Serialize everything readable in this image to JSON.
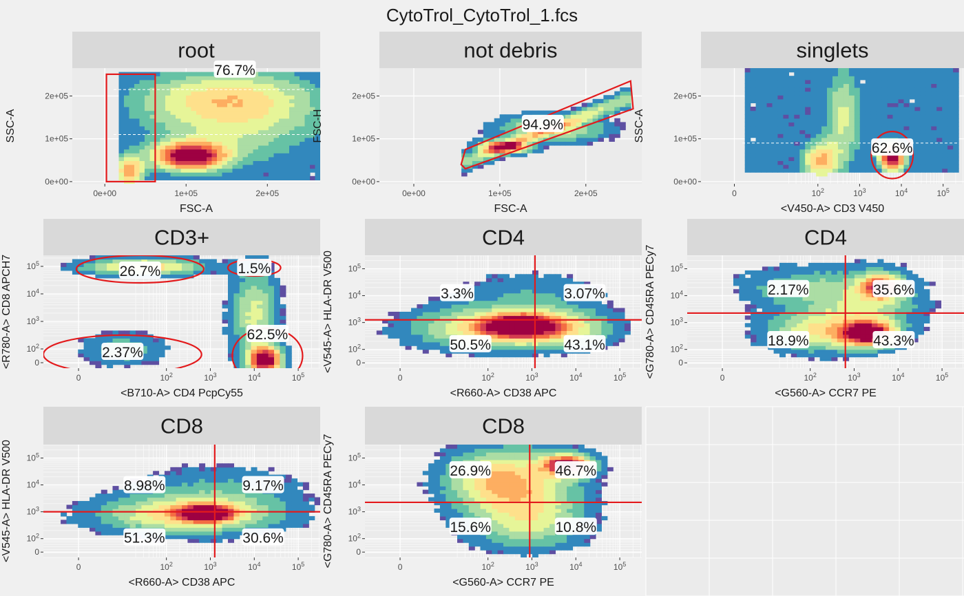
{
  "page_title": "CytoTrol_CytoTrol_1.fcs",
  "colors": {
    "page_background": "#f0f0f0",
    "panel_background": "#ebebeb",
    "strip_background": "#d9d9d9",
    "gridline": "#ffffff",
    "gate": "#e31a1c",
    "density_palette": [
      "#5e4fa2",
      "#3288bd",
      "#66c2a5",
      "#abdda4",
      "#e6f598",
      "#fee08b",
      "#fdae61",
      "#f46d43",
      "#d53e4f",
      "#9e0142"
    ]
  },
  "chart_data": [
    {
      "type": "heatmap",
      "strip": "root",
      "xlabel": "FSC-A",
      "ylabel": "SSC-A",
      "xscale": "linear",
      "yscale": "linear",
      "xlim": [
        -40000,
        265000
      ],
      "ylim": [
        -5000,
        265000
      ],
      "xticks": [
        {
          "v": 0,
          "t": "0e+00"
        },
        {
          "v": 100000,
          "t": "1e+05"
        },
        {
          "v": 200000,
          "t": "2e+05"
        }
      ],
      "yticks": [
        {
          "v": 0,
          "t": "0e+00"
        },
        {
          "v": 100000,
          "t": "1e+05"
        },
        {
          "v": 200000,
          "t": "2e+05"
        }
      ],
      "blobs": [
        {
          "x": 105000,
          "y": 60000,
          "sx": 30000,
          "sy": 22000,
          "w": 1.0
        },
        {
          "x": 160000,
          "y": 150000,
          "sx": 75000,
          "sy": 70000,
          "w": 0.35
        },
        {
          "x": 30000,
          "y": 25000,
          "sx": 12000,
          "sy": 25000,
          "w": 0.6
        },
        {
          "x": 140000,
          "y": 200000,
          "sx": 80000,
          "sy": 40000,
          "w": 0.25
        }
      ],
      "region": {
        "x": [
          15000,
          265000
        ],
        "y": [
          0,
          260000
        ]
      },
      "dashed": [
        110000,
        215000
      ],
      "gates": [
        {
          "kind": "rect",
          "x1": 2000,
          "x2": 62000,
          "y1": 0,
          "y2": 270000
        }
      ],
      "labels": [
        {
          "text": "76.7%",
          "x": 160000,
          "y": 262000
        }
      ]
    },
    {
      "type": "heatmap",
      "strip": "not debris",
      "xlabel": "FSC-A",
      "ylabel": "FSC-H",
      "xscale": "linear",
      "yscale": "linear",
      "xlim": [
        -40000,
        265000
      ],
      "ylim": [
        -5000,
        265000
      ],
      "xticks": [
        {
          "v": 0,
          "t": "0e+00"
        },
        {
          "v": 100000,
          "t": "1e+05"
        },
        {
          "v": 200000,
          "t": "2e+05"
        }
      ],
      "yticks": [
        {
          "v": 0,
          "t": "0e+00"
        },
        {
          "v": 100000,
          "t": "1e+05"
        },
        {
          "v": 200000,
          "t": "2e+05"
        }
      ],
      "band": {
        "x1": 55000,
        "x2": 255000,
        "slope": 0.78,
        "intercept": 0,
        "width": 14000
      },
      "blobs": [
        {
          "x": 105000,
          "y": 82000,
          "sx": 18000,
          "sy": 10000,
          "w": 1.0
        },
        {
          "x": 160000,
          "y": 125000,
          "sx": 40000,
          "sy": 20000,
          "w": 0.4
        }
      ],
      "gates": [
        {
          "kind": "poly",
          "points": [
            [
              55000,
              40000
            ],
            [
              60000,
              75000
            ],
            [
              252000,
              235000
            ],
            [
              255000,
              170000
            ],
            [
              60000,
              30000
            ]
          ]
        }
      ],
      "labels": [
        {
          "text": "94.9%",
          "x": 150000,
          "y": 135000
        }
      ]
    },
    {
      "type": "heatmap",
      "strip": "singlets",
      "xlabel": "<V450-A> CD3 V450",
      "ylabel": "SSC-A",
      "xscale": "logicle",
      "yscale": "linear",
      "xlim": [
        -0.8,
        5.5
      ],
      "ylim": [
        -5000,
        265000
      ],
      "xticks": [
        {
          "v": 0,
          "t": "0"
        },
        {
          "v": 2,
          "t": "10^2"
        },
        {
          "v": 3,
          "t": "10^3"
        },
        {
          "v": 4,
          "t": "10^4"
        },
        {
          "v": 5,
          "t": "10^5"
        }
      ],
      "yticks": [
        {
          "v": 0,
          "t": "0e+00"
        },
        {
          "v": 100000,
          "t": "1e+05"
        },
        {
          "v": 200000,
          "t": "2e+05"
        }
      ],
      "blobs": [
        {
          "x": 3.78,
          "y": 58000,
          "sx": 0.22,
          "sy": 22000,
          "w": 1.0
        },
        {
          "x": 2.05,
          "y": 50000,
          "sx": 0.3,
          "sy": 30000,
          "w": 0.55
        },
        {
          "x": 2.6,
          "y": 150000,
          "sx": 0.3,
          "sy": 80000,
          "w": 0.35
        }
      ],
      "region": {
        "x": [
          0.3,
          5.4
        ],
        "y": [
          20000,
          265000
        ]
      },
      "dashed": [
        90000
      ],
      "gates": [
        {
          "kind": "ellipse",
          "cx": 3.78,
          "cy": 62000,
          "rx": 0.5,
          "ry": 55000
        }
      ],
      "labels": [
        {
          "text": "62.6%",
          "x": 3.78,
          "y": 80000
        }
      ]
    },
    {
      "type": "heatmap",
      "strip": "CD3+",
      "xlabel": "<B710-A> CD4 PcpCy55",
      "ylabel": "<R780-A> CD8 APCH7",
      "xscale": "logicle",
      "yscale": "logicle",
      "xlim": [
        -0.8,
        5.5
      ],
      "ylim": [
        1.3,
        5.4
      ],
      "xticks": [
        {
          "v": 0,
          "t": "0"
        },
        {
          "v": 2,
          "t": "10^2"
        },
        {
          "v": 3,
          "t": "10^3"
        },
        {
          "v": 4,
          "t": "10^4"
        },
        {
          "v": 5,
          "t": "10^5"
        }
      ],
      "yticks": [
        {
          "v": 1.5,
          "t": "0"
        },
        {
          "v": 2,
          "t": "10^2"
        },
        {
          "v": 3,
          "t": "10^3"
        },
        {
          "v": 4,
          "t": "10^4"
        },
        {
          "v": 5,
          "t": "10^5"
        }
      ],
      "blobs": [
        {
          "x": 4.25,
          "y": 1.6,
          "sx": 0.25,
          "sy": 0.35,
          "w": 1.0
        },
        {
          "x": 1.5,
          "y": 5.0,
          "sx": 0.9,
          "sy": 0.2,
          "w": 0.5
        },
        {
          "x": 4.0,
          "y": 3.3,
          "sx": 0.35,
          "sy": 1.1,
          "w": 0.35
        },
        {
          "x": 1.0,
          "y": 2.0,
          "sx": 0.6,
          "sy": 0.4,
          "w": 0.2
        }
      ],
      "gates": [
        {
          "kind": "ellipse",
          "cx": 1.4,
          "cy": 4.9,
          "rx": 1.45,
          "ry": 0.5
        },
        {
          "kind": "ellipse",
          "cx": 4.0,
          "cy": 4.95,
          "rx": 0.6,
          "ry": 0.3
        },
        {
          "kind": "ellipse",
          "cx": 1.0,
          "cy": 1.8,
          "rx": 1.8,
          "ry": 0.7
        },
        {
          "kind": "ellipse",
          "cx": 4.3,
          "cy": 1.75,
          "rx": 0.8,
          "ry": 1.0
        }
      ],
      "labels": [
        {
          "text": "26.7%",
          "x": 1.4,
          "y": 4.85
        },
        {
          "text": "1.5%",
          "x": 4.0,
          "y": 4.95
        },
        {
          "text": "2.37%",
          "x": 1.0,
          "y": 1.9
        },
        {
          "text": "62.5%",
          "x": 4.3,
          "y": 2.55
        }
      ]
    },
    {
      "type": "heatmap",
      "strip": "CD4",
      "xlabel": "<R660-A> CD38 APC",
      "ylabel": "<V545-A> HLA-DR V500",
      "xscale": "logicle",
      "yscale": "logicle",
      "xlim": [
        -0.8,
        5.5
      ],
      "ylim": [
        1.3,
        5.5
      ],
      "xticks": [
        {
          "v": 0,
          "t": "0"
        },
        {
          "v": 2,
          "t": "10^2"
        },
        {
          "v": 3,
          "t": "10^3"
        },
        {
          "v": 4,
          "t": "10^4"
        },
        {
          "v": 5,
          "t": "10^5"
        }
      ],
      "yticks": [
        {
          "v": 1.5,
          "t": "0"
        },
        {
          "v": 2,
          "t": "10^2"
        },
        {
          "v": 3,
          "t": "10^3"
        },
        {
          "v": 4,
          "t": "10^4"
        },
        {
          "v": 5,
          "t": "10^5"
        }
      ],
      "blobs": [
        {
          "x": 2.7,
          "y": 2.9,
          "sx": 0.5,
          "sy": 0.25,
          "w": 1.0
        },
        {
          "x": 2.2,
          "y": 2.8,
          "sx": 1.2,
          "sy": 0.5,
          "w": 0.5
        },
        {
          "x": 3.5,
          "y": 2.8,
          "sx": 0.8,
          "sy": 0.4,
          "w": 0.35
        },
        {
          "x": 3.0,
          "y": 4.0,
          "sx": 1.2,
          "sy": 0.6,
          "w": 0.12
        }
      ],
      "gates": [
        {
          "kind": "quad",
          "x": 3.07,
          "y": 3.1
        }
      ],
      "labels": [
        {
          "text": "3.3%",
          "x": 1.3,
          "y": 4.1
        },
        {
          "text": "3.07%",
          "x": 4.2,
          "y": 4.1
        },
        {
          "text": "50.5%",
          "x": 1.6,
          "y": 2.2
        },
        {
          "text": "43.1%",
          "x": 4.2,
          "y": 2.2
        }
      ]
    },
    {
      "type": "heatmap",
      "strip": "CD4",
      "xlabel": "<G560-A> CCR7 PE",
      "ylabel": "<G780-A> CD45RA PECy7",
      "xscale": "logicle",
      "yscale": "logicle",
      "xlim": [
        -0.8,
        5.5
      ],
      "ylim": [
        1.3,
        5.5
      ],
      "xticks": [
        {
          "v": 0,
          "t": "0"
        },
        {
          "v": 2,
          "t": "10^2"
        },
        {
          "v": 3,
          "t": "10^3"
        },
        {
          "v": 4,
          "t": "10^4"
        },
        {
          "v": 5,
          "t": "10^5"
        }
      ],
      "yticks": [
        {
          "v": 1.5,
          "t": "0"
        },
        {
          "v": 2,
          "t": "10^2"
        },
        {
          "v": 3,
          "t": "10^3"
        },
        {
          "v": 4,
          "t": "10^4"
        },
        {
          "v": 5,
          "t": "10^5"
        }
      ],
      "blobs": [
        {
          "x": 3.3,
          "y": 2.6,
          "sx": 0.4,
          "sy": 0.3,
          "w": 1.0
        },
        {
          "x": 3.6,
          "y": 4.35,
          "sx": 0.3,
          "sy": 0.3,
          "w": 0.75
        },
        {
          "x": 2.2,
          "y": 2.7,
          "sx": 0.8,
          "sy": 0.5,
          "w": 0.4
        },
        {
          "x": 3.3,
          "y": 3.7,
          "sx": 0.8,
          "sy": 0.8,
          "w": 0.3
        },
        {
          "x": 1.7,
          "y": 4.3,
          "sx": 0.9,
          "sy": 0.5,
          "w": 0.2
        }
      ],
      "gates": [
        {
          "kind": "quad",
          "x": 2.8,
          "y": 3.35
        }
      ],
      "labels": [
        {
          "text": "2.17%",
          "x": 1.5,
          "y": 4.25
        },
        {
          "text": "35.6%",
          "x": 3.9,
          "y": 4.25
        },
        {
          "text": "18.9%",
          "x": 1.5,
          "y": 2.35
        },
        {
          "text": "43.3%",
          "x": 3.9,
          "y": 2.35
        }
      ]
    },
    {
      "type": "heatmap",
      "strip": "CD8",
      "xlabel": "<R660-A> CD38 APC",
      "ylabel": "<V545-A> HLA-DR V500",
      "xscale": "logicle",
      "yscale": "logicle",
      "xlim": [
        -0.8,
        5.5
      ],
      "ylim": [
        1.3,
        5.5
      ],
      "xticks": [
        {
          "v": 0,
          "t": "0"
        },
        {
          "v": 2,
          "t": "10^2"
        },
        {
          "v": 3,
          "t": "10^3"
        },
        {
          "v": 4,
          "t": "10^4"
        },
        {
          "v": 5,
          "t": "10^5"
        }
      ],
      "yticks": [
        {
          "v": 1.5,
          "t": "0"
        },
        {
          "v": 2,
          "t": "10^2"
        },
        {
          "v": 3,
          "t": "10^3"
        },
        {
          "v": 4,
          "t": "10^4"
        },
        {
          "v": 5,
          "t": "10^5"
        }
      ],
      "blobs": [
        {
          "x": 2.9,
          "y": 2.95,
          "sx": 0.4,
          "sy": 0.2,
          "w": 1.0
        },
        {
          "x": 2.5,
          "y": 2.9,
          "sx": 1.3,
          "sy": 0.45,
          "w": 0.5
        },
        {
          "x": 3.2,
          "y": 3.8,
          "sx": 1.2,
          "sy": 0.6,
          "w": 0.15
        }
      ],
      "gates": [
        {
          "kind": "quad",
          "x": 3.1,
          "y": 3.0
        }
      ],
      "labels": [
        {
          "text": "8.98%",
          "x": 1.5,
          "y": 4.0
        },
        {
          "text": "9.17%",
          "x": 4.2,
          "y": 4.0
        },
        {
          "text": "51.3%",
          "x": 1.5,
          "y": 2.05
        },
        {
          "text": "30.6%",
          "x": 4.2,
          "y": 2.05
        }
      ]
    },
    {
      "type": "heatmap",
      "strip": "CD8",
      "xlabel": "<G560-A> CCR7 PE",
      "ylabel": "<G780-A> CD45RA PECy7",
      "xscale": "logicle",
      "yscale": "logicle",
      "xlim": [
        -0.8,
        5.5
      ],
      "ylim": [
        1.3,
        5.5
      ],
      "xticks": [
        {
          "v": 0,
          "t": "0"
        },
        {
          "v": 2,
          "t": "10^2"
        },
        {
          "v": 3,
          "t": "10^3"
        },
        {
          "v": 4,
          "t": "10^4"
        },
        {
          "v": 5,
          "t": "10^5"
        }
      ],
      "yticks": [
        {
          "v": 1.5,
          "t": "0"
        },
        {
          "v": 2,
          "t": "10^2"
        },
        {
          "v": 3,
          "t": "10^3"
        },
        {
          "v": 4,
          "t": "10^4"
        },
        {
          "v": 5,
          "t": "10^5"
        }
      ],
      "blobs": [
        {
          "x": 3.8,
          "y": 4.75,
          "sx": 0.35,
          "sy": 0.25,
          "w": 1.0
        },
        {
          "x": 2.7,
          "y": 3.8,
          "sx": 0.9,
          "sy": 1.0,
          "w": 0.45
        },
        {
          "x": 2.0,
          "y": 4.3,
          "sx": 0.7,
          "sy": 0.6,
          "w": 0.25
        },
        {
          "x": 3.0,
          "y": 2.5,
          "sx": 0.8,
          "sy": 0.6,
          "w": 0.2
        }
      ],
      "gates": [
        {
          "kind": "quad",
          "x": 2.95,
          "y": 3.35
        }
      ],
      "labels": [
        {
          "text": "26.9%",
          "x": 1.6,
          "y": 4.55
        },
        {
          "text": "46.7%",
          "x": 4.0,
          "y": 4.55
        },
        {
          "text": "15.6%",
          "x": 1.6,
          "y": 2.45
        },
        {
          "text": "10.8%",
          "x": 4.0,
          "y": 2.45
        }
      ]
    }
  ]
}
